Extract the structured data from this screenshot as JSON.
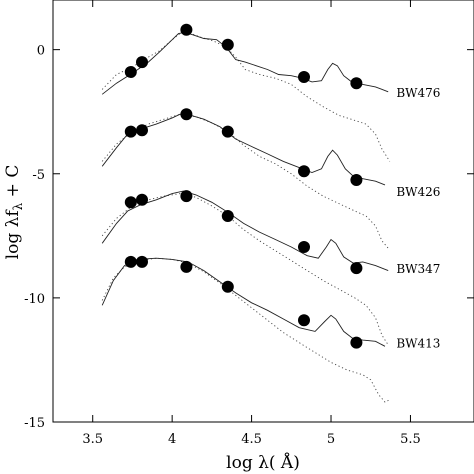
{
  "chart_data": {
    "type": "line",
    "xlabel": "log λ( Å)",
    "ylabel_parts": [
      "log λf",
      "λ",
      " + C"
    ],
    "xlim": [
      3.25,
      5.9
    ],
    "ylim": [
      -15,
      2
    ],
    "xticks": [
      3.5,
      4,
      4.5,
      5,
      5.5
    ],
    "xtick_labels": [
      "3.5",
      "4",
      "4.5",
      "5",
      "5.5"
    ],
    "yticks": [
      0,
      -5,
      -10,
      -15
    ],
    "ytick_labels": [
      "0",
      "-5",
      "-10",
      "-15"
    ],
    "grid": false,
    "series": [
      {
        "name": "BW476",
        "label_at": [
          5.55,
          -1.9
        ],
        "points": [
          [
            3.74,
            -0.9
          ],
          [
            3.81,
            -0.5
          ],
          [
            4.09,
            0.8
          ],
          [
            4.35,
            0.2
          ],
          [
            4.83,
            -1.1
          ],
          [
            5.16,
            -1.35
          ]
        ],
        "solid": [
          [
            3.56,
            -1.8
          ],
          [
            3.65,
            -1.35
          ],
          [
            3.75,
            -0.95
          ],
          [
            3.85,
            -0.5
          ],
          [
            3.92,
            -0.1
          ],
          [
            4.0,
            0.4
          ],
          [
            4.04,
            0.65
          ],
          [
            4.08,
            0.7
          ],
          [
            4.13,
            0.6
          ],
          [
            4.2,
            0.45
          ],
          [
            4.28,
            0.4
          ],
          [
            4.34,
            0.1
          ],
          [
            4.4,
            -0.4
          ],
          [
            4.46,
            -0.5
          ],
          [
            4.53,
            -0.65
          ],
          [
            4.6,
            -0.8
          ],
          [
            4.67,
            -1.0
          ],
          [
            4.75,
            -1.05
          ],
          [
            4.82,
            -1.15
          ],
          [
            4.88,
            -1.3
          ],
          [
            4.94,
            -1.25
          ],
          [
            4.98,
            -0.8
          ],
          [
            5.01,
            -0.55
          ],
          [
            5.04,
            -0.65
          ],
          [
            5.08,
            -1.05
          ],
          [
            5.13,
            -1.3
          ],
          [
            5.2,
            -1.4
          ],
          [
            5.28,
            -1.5
          ],
          [
            5.36,
            -1.7
          ]
        ],
        "dotted": [
          [
            3.56,
            -1.6
          ],
          [
            3.65,
            -1.0
          ],
          [
            3.75,
            -0.7
          ],
          [
            3.85,
            -0.3
          ],
          [
            3.92,
            -0.05
          ],
          [
            4.0,
            0.4
          ],
          [
            4.05,
            0.65
          ],
          [
            4.1,
            0.7
          ],
          [
            4.18,
            0.5
          ],
          [
            4.26,
            0.35
          ],
          [
            4.34,
            0.1
          ],
          [
            4.4,
            -0.3
          ],
          [
            4.46,
            -0.8
          ],
          [
            4.55,
            -1.0
          ],
          [
            4.65,
            -1.15
          ],
          [
            4.75,
            -1.4
          ],
          [
            4.85,
            -1.9
          ],
          [
            4.95,
            -2.3
          ],
          [
            5.05,
            -2.65
          ],
          [
            5.15,
            -2.85
          ],
          [
            5.22,
            -3.0
          ],
          [
            5.28,
            -3.4
          ],
          [
            5.32,
            -4.0
          ],
          [
            5.37,
            -4.5
          ]
        ]
      },
      {
        "name": "BW426",
        "label_at": [
          5.55,
          -5.9
        ],
        "points": [
          [
            3.74,
            -3.3
          ],
          [
            3.81,
            -3.25
          ],
          [
            4.09,
            -2.6
          ],
          [
            4.35,
            -3.3
          ],
          [
            4.83,
            -4.9
          ],
          [
            5.16,
            -5.25
          ]
        ],
        "solid": [
          [
            3.56,
            -4.7
          ],
          [
            3.65,
            -3.95
          ],
          [
            3.72,
            -3.4
          ],
          [
            3.8,
            -3.2
          ],
          [
            3.9,
            -3.0
          ],
          [
            4.0,
            -2.75
          ],
          [
            4.05,
            -2.6
          ],
          [
            4.12,
            -2.65
          ],
          [
            4.2,
            -2.8
          ],
          [
            4.3,
            -3.1
          ],
          [
            4.4,
            -3.6
          ],
          [
            4.5,
            -3.9
          ],
          [
            4.6,
            -4.2
          ],
          [
            4.7,
            -4.5
          ],
          [
            4.8,
            -4.75
          ],
          [
            4.88,
            -4.95
          ],
          [
            4.94,
            -4.8
          ],
          [
            4.98,
            -4.3
          ],
          [
            5.01,
            -4.05
          ],
          [
            5.04,
            -4.25
          ],
          [
            5.09,
            -4.8
          ],
          [
            5.14,
            -5.1
          ],
          [
            5.2,
            -5.2
          ],
          [
            5.28,
            -5.3
          ],
          [
            5.34,
            -5.45
          ]
        ],
        "dotted": [
          [
            3.56,
            -4.5
          ],
          [
            3.65,
            -3.8
          ],
          [
            3.75,
            -3.3
          ],
          [
            3.85,
            -3.0
          ],
          [
            3.95,
            -2.8
          ],
          [
            4.05,
            -2.6
          ],
          [
            4.15,
            -2.7
          ],
          [
            4.25,
            -2.95
          ],
          [
            4.35,
            -3.3
          ],
          [
            4.45,
            -3.85
          ],
          [
            4.55,
            -4.3
          ],
          [
            4.65,
            -4.6
          ],
          [
            4.75,
            -5.0
          ],
          [
            4.85,
            -5.5
          ],
          [
            4.95,
            -5.9
          ],
          [
            5.05,
            -6.2
          ],
          [
            5.15,
            -6.5
          ],
          [
            5.22,
            -6.7
          ],
          [
            5.28,
            -7.1
          ],
          [
            5.32,
            -7.7
          ],
          [
            5.36,
            -8.0
          ]
        ]
      },
      {
        "name": "BW347",
        "label_at": [
          5.55,
          -9.0
        ],
        "points": [
          [
            3.74,
            -6.15
          ],
          [
            3.81,
            -6.05
          ],
          [
            4.09,
            -5.9
          ],
          [
            4.35,
            -6.7
          ],
          [
            4.83,
            -7.95
          ],
          [
            5.16,
            -8.8
          ]
        ],
        "solid": [
          [
            3.56,
            -7.8
          ],
          [
            3.65,
            -7.0
          ],
          [
            3.72,
            -6.5
          ],
          [
            3.8,
            -6.25
          ],
          [
            3.9,
            -6.05
          ],
          [
            4.0,
            -5.8
          ],
          [
            4.07,
            -5.7
          ],
          [
            4.15,
            -5.85
          ],
          [
            4.25,
            -6.15
          ],
          [
            4.35,
            -6.55
          ],
          [
            4.45,
            -7.0
          ],
          [
            4.55,
            -7.35
          ],
          [
            4.65,
            -7.65
          ],
          [
            4.75,
            -7.95
          ],
          [
            4.85,
            -8.3
          ],
          [
            4.92,
            -8.4
          ],
          [
            4.97,
            -7.95
          ],
          [
            5.0,
            -7.65
          ],
          [
            5.03,
            -7.8
          ],
          [
            5.08,
            -8.35
          ],
          [
            5.14,
            -8.6
          ],
          [
            5.2,
            -8.55
          ],
          [
            5.28,
            -8.7
          ],
          [
            5.36,
            -8.9
          ]
        ],
        "dotted": [
          [
            3.56,
            -7.5
          ],
          [
            3.65,
            -6.8
          ],
          [
            3.75,
            -6.3
          ],
          [
            3.85,
            -6.05
          ],
          [
            3.95,
            -5.9
          ],
          [
            4.05,
            -5.8
          ],
          [
            4.15,
            -5.95
          ],
          [
            4.25,
            -6.3
          ],
          [
            4.35,
            -6.7
          ],
          [
            4.45,
            -7.25
          ],
          [
            4.55,
            -7.7
          ],
          [
            4.65,
            -8.1
          ],
          [
            4.75,
            -8.5
          ],
          [
            4.85,
            -8.9
          ],
          [
            4.95,
            -9.3
          ],
          [
            5.05,
            -9.65
          ],
          [
            5.15,
            -10.0
          ],
          [
            5.22,
            -10.3
          ],
          [
            5.28,
            -10.8
          ],
          [
            5.32,
            -11.5
          ],
          [
            5.36,
            -11.9
          ]
        ]
      },
      {
        "name": "BW413",
        "label_at": [
          5.55,
          -12.0
        ],
        "points": [
          [
            3.74,
            -8.55
          ],
          [
            3.81,
            -8.55
          ],
          [
            4.09,
            -8.75
          ],
          [
            4.35,
            -9.55
          ],
          [
            4.83,
            -10.9
          ],
          [
            5.16,
            -11.8
          ]
        ],
        "solid": [
          [
            3.56,
            -10.3
          ],
          [
            3.63,
            -9.3
          ],
          [
            3.7,
            -8.7
          ],
          [
            3.78,
            -8.45
          ],
          [
            3.9,
            -8.4
          ],
          [
            4.0,
            -8.45
          ],
          [
            4.1,
            -8.55
          ],
          [
            4.2,
            -8.9
          ],
          [
            4.3,
            -9.35
          ],
          [
            4.4,
            -9.8
          ],
          [
            4.5,
            -10.2
          ],
          [
            4.6,
            -10.5
          ],
          [
            4.7,
            -10.85
          ],
          [
            4.8,
            -11.2
          ],
          [
            4.9,
            -11.35
          ],
          [
            4.96,
            -10.95
          ],
          [
            5.0,
            -10.7
          ],
          [
            5.03,
            -10.85
          ],
          [
            5.08,
            -11.35
          ],
          [
            5.14,
            -11.65
          ],
          [
            5.2,
            -11.7
          ],
          [
            5.28,
            -11.75
          ],
          [
            5.34,
            -11.95
          ]
        ],
        "dotted": [
          [
            3.56,
            -10.1
          ],
          [
            3.63,
            -9.2
          ],
          [
            3.7,
            -8.75
          ],
          [
            3.8,
            -8.5
          ],
          [
            3.9,
            -8.4
          ],
          [
            4.0,
            -8.45
          ],
          [
            4.1,
            -8.6
          ],
          [
            4.2,
            -8.95
          ],
          [
            4.3,
            -9.4
          ],
          [
            4.4,
            -9.9
          ],
          [
            4.5,
            -10.4
          ],
          [
            4.6,
            -10.9
          ],
          [
            4.7,
            -11.4
          ],
          [
            4.8,
            -11.8
          ],
          [
            4.9,
            -12.2
          ],
          [
            5.0,
            -12.6
          ],
          [
            5.1,
            -12.9
          ],
          [
            5.2,
            -13.1
          ],
          [
            5.25,
            -13.3
          ],
          [
            5.3,
            -13.9
          ],
          [
            5.34,
            -14.2
          ],
          [
            5.37,
            -14.1
          ]
        ]
      }
    ]
  }
}
